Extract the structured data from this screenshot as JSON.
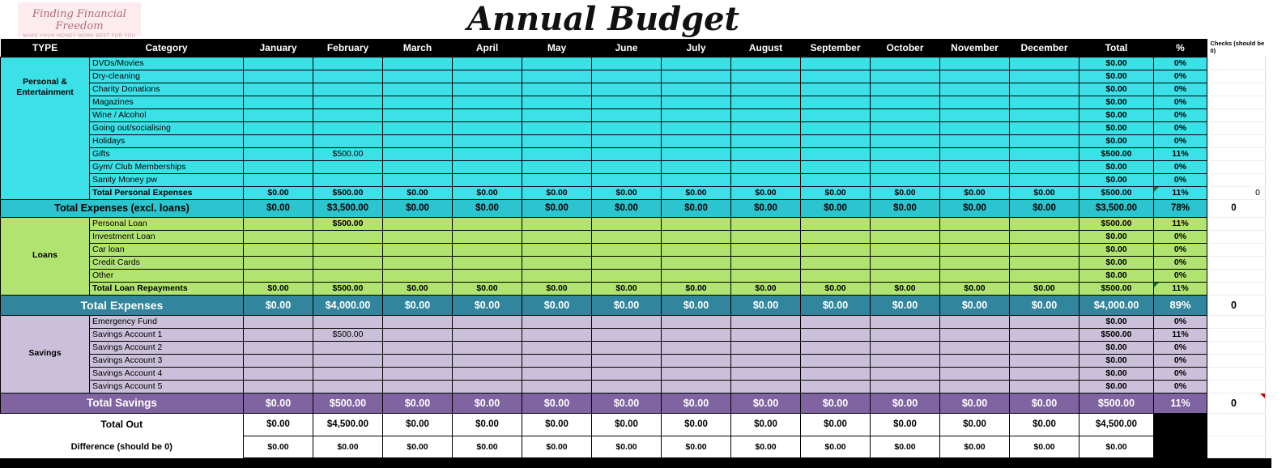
{
  "logo": {
    "title": "Finding Financial Freedom",
    "subtitle": "MAKE YOUR MONEY WORK BEST FOR YOU"
  },
  "title": "Annual Budget",
  "header": {
    "type": "TYPE",
    "category": "Category",
    "months": [
      "January",
      "February",
      "March",
      "April",
      "May",
      "June",
      "July",
      "August",
      "September",
      "October",
      "November",
      "December"
    ],
    "total": "Total",
    "percent": "%",
    "checks": "Checks (should be 0)"
  },
  "colors": {
    "header_bg": "#000000",
    "personal_bg": "#3CE1E8",
    "loans_bg": "#B0E36F",
    "savings_bg": "#CBC0D9",
    "subtotal_band_bg": "#2CC4CE",
    "total_expenses_band_bg": "#31859C",
    "total_savings_band_bg": "#8064A2"
  },
  "blocks": [
    {
      "kind": "section",
      "id": "personal",
      "cls": "sec-personal",
      "type_label": "Personal & Entertainment",
      "rows": [
        {
          "category": "DVDs/Movies",
          "months": {},
          "total": "$0.00",
          "percent": "0%"
        },
        {
          "category": "Dry-cleaning",
          "months": {},
          "total": "$0.00",
          "percent": "0%"
        },
        {
          "category": "Charity Donations",
          "months": {},
          "total": "$0.00",
          "percent": "0%"
        },
        {
          "category": "Magazines",
          "months": {},
          "total": "$0.00",
          "percent": "0%"
        },
        {
          "category": "Wine / Alcohol",
          "months": {},
          "total": "$0.00",
          "percent": "0%"
        },
        {
          "category": "Going out/socialising",
          "months": {},
          "total": "$0.00",
          "percent": "0%"
        },
        {
          "category": "Holidays",
          "months": {},
          "total": "$0.00",
          "percent": "0%"
        },
        {
          "category": "Gifts",
          "months": {
            "1": "$500.00"
          },
          "total": "$500.00",
          "percent": "11%"
        },
        {
          "category": "Gym/ Club Memberships",
          "months": {},
          "total": "$0.00",
          "percent": "0%"
        },
        {
          "category": "Sanity Money pw",
          "months": {},
          "total": "$0.00",
          "percent": "0%"
        }
      ],
      "total_row": {
        "category": "Total Personal Expenses",
        "months": [
          "$0.00",
          "$500.00",
          "$0.00",
          "$0.00",
          "$0.00",
          "$0.00",
          "$0.00",
          "$0.00",
          "$0.00",
          "$0.00",
          "$0.00",
          "$0.00"
        ],
        "total": "$500.00",
        "percent": "11%",
        "check": "0",
        "flag_pct": true
      }
    },
    {
      "kind": "band",
      "id": "excl-loans",
      "cls": "band-teal",
      "label": "Total Expenses (excl. loans)",
      "months": [
        "$0.00",
        "$3,500.00",
        "$0.00",
        "$0.00",
        "$0.00",
        "$0.00",
        "$0.00",
        "$0.00",
        "$0.00",
        "$0.00",
        "$0.00",
        "$0.00"
      ],
      "total": "$3,500.00",
      "percent": "78%",
      "check": "0"
    },
    {
      "kind": "section",
      "id": "loans",
      "cls": "sec-loans",
      "type_label": "Loans",
      "rows": [
        {
          "category": "Personal Loan",
          "months": {
            "1": "$500.00"
          },
          "bold_month": 1,
          "total": "$500.00",
          "percent": "11%"
        },
        {
          "category": "Investment Loan",
          "months": {},
          "total": "$0.00",
          "percent": "0%"
        },
        {
          "category": "Car loan",
          "months": {},
          "total": "$0.00",
          "percent": "0%"
        },
        {
          "category": "Credit Cards",
          "months": {},
          "total": "$0.00",
          "percent": "0%"
        },
        {
          "category": "Other",
          "months": {},
          "total": "$0.00",
          "percent": "0%"
        }
      ],
      "total_row": {
        "category": "Total Loan Repayments",
        "months": [
          "$0.00",
          "$500.00",
          "$0.00",
          "$0.00",
          "$0.00",
          "$0.00",
          "$0.00",
          "$0.00",
          "$0.00",
          "$0.00",
          "$0.00",
          "$0.00"
        ],
        "total": "$500.00",
        "percent": "11%",
        "flag_pct": true
      }
    },
    {
      "kind": "band",
      "id": "total-expenses",
      "cls": "band-dark",
      "label": "Total Expenses",
      "months": [
        "$0.00",
        "$4,000.00",
        "$0.00",
        "$0.00",
        "$0.00",
        "$0.00",
        "$0.00",
        "$0.00",
        "$0.00",
        "$0.00",
        "$0.00",
        "$0.00"
      ],
      "total": "$4,000.00",
      "percent": "89%",
      "check": "0"
    },
    {
      "kind": "section",
      "id": "savings",
      "cls": "sec-savings",
      "type_label": "Savings",
      "rows": [
        {
          "category": "Emergency Fund",
          "months": {},
          "total": "$0.00",
          "percent": "0%"
        },
        {
          "category": "Savings Account 1",
          "months": {
            "1": "$500.00"
          },
          "total": "$500.00",
          "percent": "11%"
        },
        {
          "category": "Savings Account 2",
          "months": {},
          "total": "$0.00",
          "percent": "0%"
        },
        {
          "category": "Savings Account 3",
          "months": {},
          "total": "$0.00",
          "percent": "0%"
        },
        {
          "category": "Savings Account 4",
          "months": {},
          "total": "$0.00",
          "percent": "0%"
        },
        {
          "category": "Savings Account 5",
          "months": {},
          "total": "$0.00",
          "percent": "0%"
        }
      ],
      "total_row": null
    },
    {
      "kind": "band",
      "id": "total-savings",
      "cls": "band-purple",
      "label": "Total Savings",
      "months": [
        "$0.00",
        "$500.00",
        "$0.00",
        "$0.00",
        "$0.00",
        "$0.00",
        "$0.00",
        "$0.00",
        "$0.00",
        "$0.00",
        "$0.00",
        "$0.00"
      ],
      "total": "$500.00",
      "percent": "11%",
      "check": "0",
      "check_flag": true
    },
    {
      "kind": "band",
      "id": "total-out",
      "cls": "band-out",
      "label": "Total Out",
      "months": [
        "$0.00",
        "$4,500.00",
        "$0.00",
        "$0.00",
        "$0.00",
        "$0.00",
        "$0.00",
        "$0.00",
        "$0.00",
        "$0.00",
        "$0.00",
        "$0.00"
      ],
      "total": "$4,500.00",
      "percent": null
    },
    {
      "kind": "band",
      "id": "difference",
      "cls": "band-diff",
      "label": "Difference (should be 0)",
      "months": [
        "$0.00",
        "$0.00",
        "$0.00",
        "$0.00",
        "$0.00",
        "$0.00",
        "$0.00",
        "$0.00",
        "$0.00",
        "$0.00",
        "$0.00",
        "$0.00"
      ],
      "total": "$0.00",
      "percent": null
    }
  ]
}
